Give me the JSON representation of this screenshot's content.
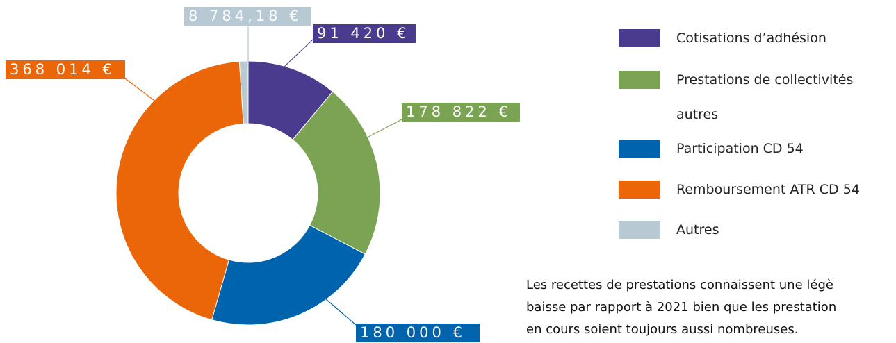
{
  "chart_data": {
    "type": "pie",
    "categories": [
      "Cotisations d’adhésion",
      "Prestations de collectivités autres",
      "Participation CD 54",
      "Remboursement ATR CD 54",
      "Autres"
    ],
    "values": [
      91420,
      178822,
      180000,
      368014,
      8784.18
    ],
    "value_labels": [
      "91 420 €",
      "178 822 €",
      "180 000 €",
      "368 014 €",
      "8 784,18 €"
    ],
    "colors": [
      "#4b3b8f",
      "#7ba354",
      "#0063ad",
      "#eb6608",
      "#b7c9d3"
    ]
  },
  "note_lines": [
    "Les recettes de prestations connaissent une légè",
    "baisse par rapport à 2021 bien que les prestation",
    "en cours soient toujours aussi nombreuses."
  ]
}
